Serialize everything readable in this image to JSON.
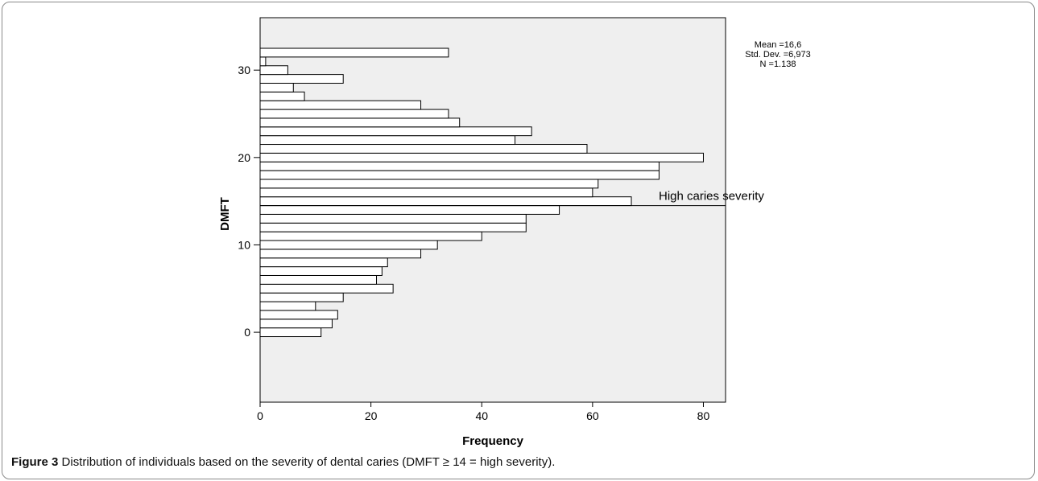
{
  "chart_data": {
    "type": "bar",
    "orientation": "horizontal",
    "xlabel": "Frequency",
    "ylabel": "DMFT",
    "xlim": [
      0,
      84
    ],
    "ylim": [
      -8,
      36
    ],
    "x_ticks": [
      0,
      20,
      40,
      60,
      80
    ],
    "y_ticks": [
      0,
      10,
      20,
      30
    ],
    "bin_width": 1,
    "categories": [
      0,
      1,
      2,
      3,
      4,
      5,
      6,
      7,
      8,
      9,
      10,
      11,
      12,
      13,
      14,
      15,
      16,
      17,
      18,
      19,
      20,
      21,
      22,
      23,
      24,
      25,
      26,
      27,
      28,
      29,
      30,
      31,
      32
    ],
    "values": [
      11,
      13,
      14,
      10,
      15,
      24,
      21,
      22,
      23,
      29,
      32,
      40,
      48,
      48,
      54,
      67,
      60,
      61,
      72,
      72,
      80,
      59,
      46,
      49,
      36,
      34,
      29,
      8,
      6,
      15,
      5,
      1,
      34
    ],
    "stats": {
      "mean": "Mean =16,6",
      "std_dev": "Std. Dev. =6,973",
      "n": "N =1.138"
    },
    "annotation": {
      "text": "High caries severity",
      "y_value": 14.5
    },
    "grid": false,
    "background": "#efefef",
    "bar_fill": "#ffffff",
    "bar_stroke": "#000000"
  },
  "caption": {
    "label": "Figure 3",
    "text": "Distribution of individuals based on the severity of dental caries (DMFT ≥ 14 = high severity)."
  }
}
